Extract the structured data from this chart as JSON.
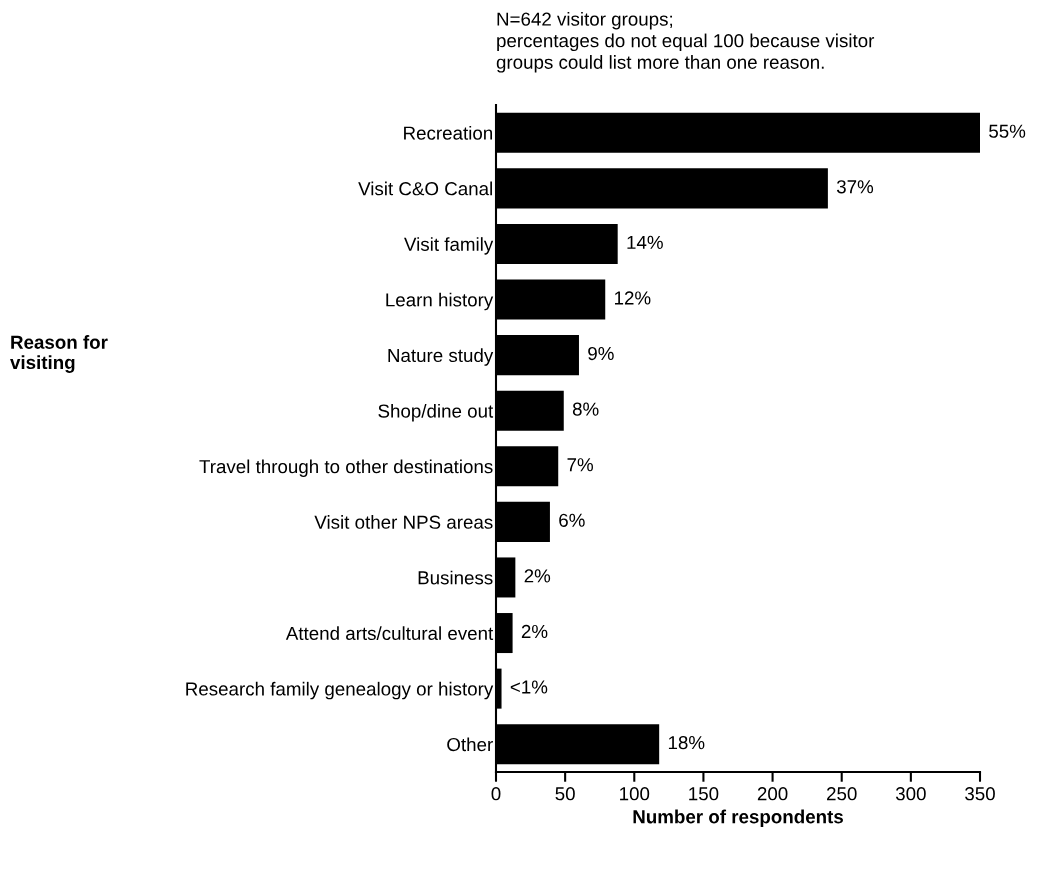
{
  "chart_data": {
    "type": "bar",
    "orientation": "horizontal",
    "categories": [
      "Recreation",
      "Visit C&O Canal",
      "Visit family",
      "Learn history",
      "Nature study",
      "Shop/dine out",
      "Travel through to other destinations",
      "Visit other NPS areas",
      "Business",
      "Attend arts/cultural event",
      "Research family genealogy or history",
      "Other"
    ],
    "values": [
      350,
      240,
      88,
      79,
      60,
      49,
      45,
      39,
      14,
      12,
      4,
      118
    ],
    "color": "#000000",
    "xlim": [
      0,
      350
    ],
    "xticks": [
      0,
      50,
      100,
      150,
      200,
      250,
      300,
      350
    ],
    "xlabel": "Number of respondents",
    "ylabel": "Reason for\nvisiting",
    "annotations": [
      "N=642 visitor groups;\npercentages do not equal 100 because visitor\ngroups could list more than one reason.",
      {
        "text": "55%",
        "x": 350,
        "y": "Recreation"
      },
      {
        "text": "37%",
        "x": 240,
        "y": "Visit C&O Canal"
      },
      {
        "text": "14%",
        "x": 88,
        "y": "Visit family"
      },
      {
        "text": "12%",
        "x": 79,
        "y": "Learn history"
      },
      {
        "text": "9%",
        "x": 60,
        "y": "Nature study"
      },
      {
        "text": "8%",
        "x": 49,
        "y": "Shop/dine out"
      },
      {
        "text": "7%",
        "x": 45,
        "y": "Travel through to other destinations"
      },
      {
        "text": "6%",
        "x": 39,
        "y": "Visit other NPS areas"
      },
      {
        "text": "2%",
        "x": 14,
        "y": "Business"
      },
      {
        "text": "2%",
        "x": 12,
        "y": "Attend arts/cultural event"
      },
      {
        "text": "<1%",
        "x": 4,
        "y": "Research family genealogy or history"
      },
      {
        "text": "18%",
        "x": 118,
        "y": "Other"
      }
    ],
    "grid": false,
    "legend": false
  }
}
